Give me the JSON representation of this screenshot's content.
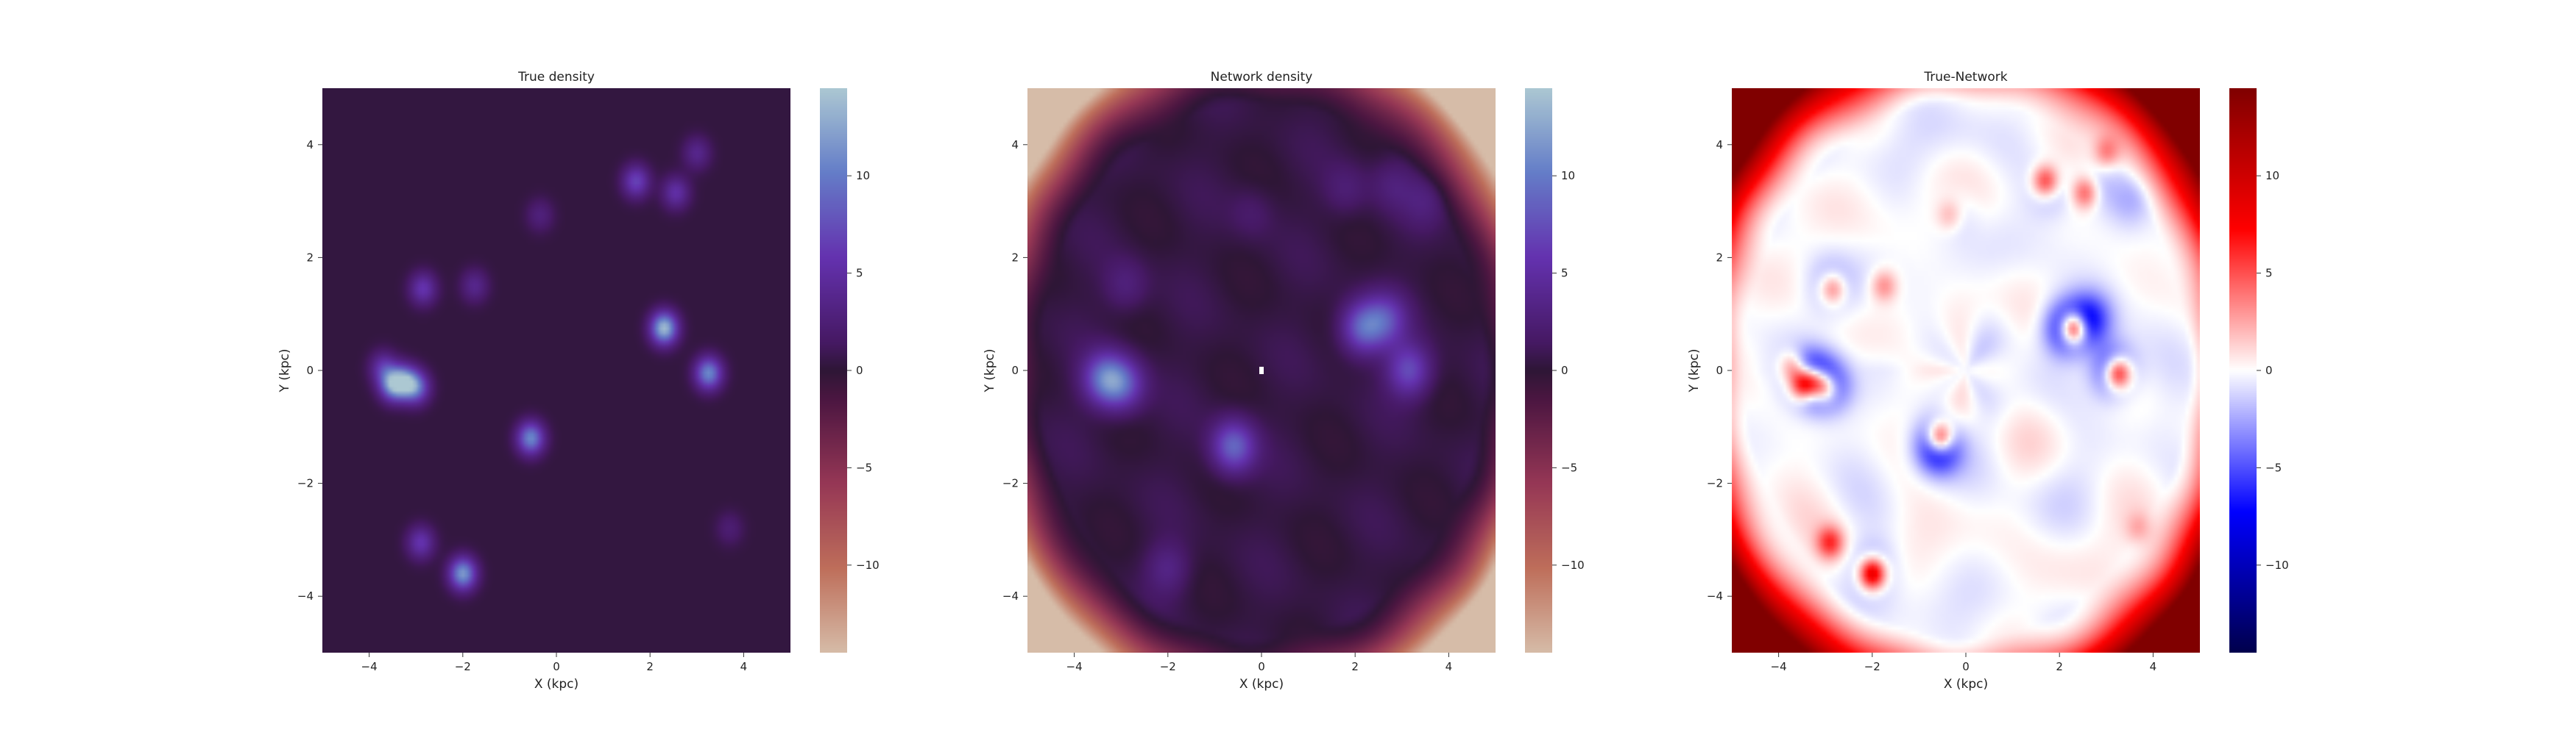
{
  "figure": {
    "panels": [
      {
        "id": "true",
        "title": "True density",
        "colormap": "twilight_shifted",
        "vmin": -14.5,
        "vmax": 14.5
      },
      {
        "id": "network",
        "title": "Network density",
        "colormap": "twilight_shifted",
        "vmin": -14.5,
        "vmax": 14.5
      },
      {
        "id": "diff",
        "title": "True-Network",
        "colormap": "seismic",
        "vmin": -14.5,
        "vmax": 14.5
      }
    ]
  },
  "chart_data": {
    "type": "heatmap",
    "xlabel": "X (kpc)",
    "ylabel": "Y (kpc)",
    "xlim": [
      -5,
      5
    ],
    "ylim": [
      -5,
      5
    ],
    "xticks": [
      -4,
      -2,
      0,
      2,
      4
    ],
    "yticks": [
      -4,
      -2,
      0,
      2,
      4
    ],
    "colorbar_ticks": [
      -10,
      -5,
      0,
      5,
      10
    ],
    "grid": false,
    "true_density_sources": [
      {
        "x": -3.5,
        "y": -0.25,
        "amp": 10.5
      },
      {
        "x": -3.25,
        "y": -0.2,
        "amp": 9.5
      },
      {
        "x": -3.0,
        "y": -0.3,
        "amp": 8.5
      },
      {
        "x": -3.7,
        "y": 0.05,
        "amp": 5.0
      },
      {
        "x": -2.85,
        "y": 1.45,
        "amp": 5.5
      },
      {
        "x": -1.75,
        "y": 1.5,
        "amp": 3.5
      },
      {
        "x": -0.55,
        "y": -1.2,
        "amp": 10.5
      },
      {
        "x": -2.0,
        "y": -3.6,
        "amp": 11.5
      },
      {
        "x": -2.9,
        "y": -3.05,
        "amp": 5.5
      },
      {
        "x": 2.3,
        "y": 0.75,
        "amp": 13.5
      },
      {
        "x": 3.25,
        "y": -0.05,
        "amp": 10.5
      },
      {
        "x": 1.7,
        "y": 3.35,
        "amp": 6.5
      },
      {
        "x": 2.55,
        "y": 3.15,
        "amp": 5.0
      },
      {
        "x": 3.0,
        "y": 3.85,
        "amp": 3.5
      },
      {
        "x": -0.35,
        "y": 2.75,
        "amp": 2.5
      },
      {
        "x": 3.7,
        "y": -2.8,
        "amp": 2.0
      }
    ],
    "network_density_sources": [
      {
        "x": -3.35,
        "y": -0.15,
        "amp": 8.5
      },
      {
        "x": -2.95,
        "y": -0.25,
        "amp": 6.5
      },
      {
        "x": -0.6,
        "y": -1.35,
        "amp": 8.5
      },
      {
        "x": 2.15,
        "y": 0.75,
        "amp": 8.0
      },
      {
        "x": 2.65,
        "y": 0.9,
        "amp": 6.0
      },
      {
        "x": 3.15,
        "y": 0.0,
        "amp": 7.0
      },
      {
        "x": -2.9,
        "y": 1.5,
        "amp": 2.5
      },
      {
        "x": -0.2,
        "y": 2.8,
        "amp": 1.5
      },
      {
        "x": 1.8,
        "y": 3.2,
        "amp": 2.0
      },
      {
        "x": 2.8,
        "y": 3.3,
        "amp": 2.0
      },
      {
        "x": -2.0,
        "y": -3.5,
        "amp": 3.0
      },
      {
        "x": 3.5,
        "y": 3.0,
        "amp": 2.0
      }
    ]
  }
}
